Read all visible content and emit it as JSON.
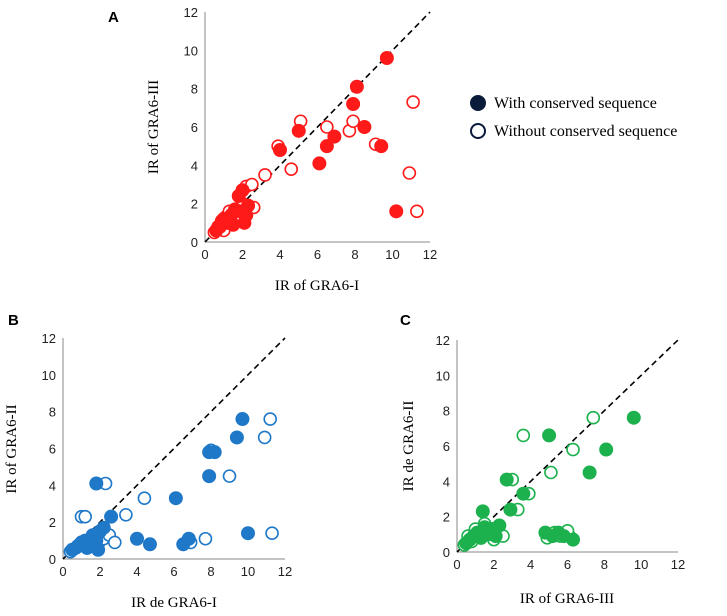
{
  "legend": {
    "filled_label": "With conserved sequence",
    "open_label": "Without conserved sequence",
    "marker_color": "#0a1a3a"
  },
  "chart_data": [
    {
      "type": "scatter",
      "panel": "A",
      "color": "#ff1a1a",
      "xlabel": "IR of GRA6-I",
      "ylabel": "IR of  GRA6-III",
      "xlim": [
        0,
        12
      ],
      "ylim": [
        0,
        12
      ],
      "ticks": [
        "0",
        "2",
        "4",
        "6",
        "8",
        "10",
        "12"
      ],
      "diagonal": true,
      "series": [
        {
          "name": "With conserved sequence",
          "filled": true,
          "points": [
            [
              0.6,
              0.6
            ],
            [
              0.8,
              0.8
            ],
            [
              1.0,
              1.2
            ],
            [
              1.2,
              1.0
            ],
            [
              1.4,
              1.4
            ],
            [
              1.6,
              1.7
            ],
            [
              1.8,
              2.4
            ],
            [
              2.0,
              2.7
            ],
            [
              2.1,
              1.0
            ],
            [
              2.3,
              1.9
            ],
            [
              1.9,
              1.6
            ],
            [
              2.2,
              1.4
            ],
            [
              0.9,
              1.1
            ],
            [
              1.5,
              0.9
            ],
            [
              4.0,
              4.8
            ],
            [
              5.0,
              5.8
            ],
            [
              6.1,
              4.1
            ],
            [
              6.5,
              5.0
            ],
            [
              6.9,
              5.5
            ],
            [
              7.9,
              7.2
            ],
            [
              8.1,
              8.1
            ],
            [
              8.5,
              6.0
            ],
            [
              9.4,
              5.0
            ],
            [
              9.7,
              9.6
            ],
            [
              10.2,
              1.6
            ]
          ]
        },
        {
          "name": "Without conserved sequence",
          "filled": false,
          "points": [
            [
              0.5,
              0.5
            ],
            [
              0.7,
              0.8
            ],
            [
              1.0,
              0.6
            ],
            [
              1.1,
              1.3
            ],
            [
              1.3,
              1.6
            ],
            [
              1.5,
              1.0
            ],
            [
              1.7,
              1.3
            ],
            [
              2.0,
              2.0
            ],
            [
              2.2,
              2.9
            ],
            [
              2.5,
              3.0
            ],
            [
              2.6,
              1.8
            ],
            [
              3.2,
              3.5
            ],
            [
              3.9,
              5.0
            ],
            [
              4.6,
              3.8
            ],
            [
              5.1,
              6.3
            ],
            [
              6.5,
              6.0
            ],
            [
              7.7,
              5.8
            ],
            [
              7.9,
              6.3
            ],
            [
              9.1,
              5.1
            ],
            [
              10.9,
              3.6
            ],
            [
              11.1,
              7.3
            ],
            [
              11.3,
              1.6
            ]
          ]
        }
      ]
    },
    {
      "type": "scatter",
      "panel": "B",
      "color": "#1f78c8",
      "xlabel": "IR de GRA6-I",
      "ylabel": "IR of  GRA6-II",
      "xlim": [
        0,
        12
      ],
      "ylim": [
        0,
        12
      ],
      "ticks": [
        "0",
        "2",
        "4",
        "6",
        "8",
        "10",
        "12"
      ],
      "diagonal": true,
      "series": [
        {
          "name": "With conserved sequence",
          "filled": true,
          "points": [
            [
              0.5,
              0.5
            ],
            [
              0.8,
              0.7
            ],
            [
              1.0,
              0.9
            ],
            [
              1.2,
              1.0
            ],
            [
              1.4,
              0.8
            ],
            [
              1.6,
              1.2
            ],
            [
              1.8,
              1.0
            ],
            [
              2.0,
              1.5
            ],
            [
              2.2,
              1.7
            ],
            [
              1.3,
              0.6
            ],
            [
              1.9,
              0.5
            ],
            [
              1.8,
              4.1
            ],
            [
              2.6,
              2.3
            ],
            [
              4.0,
              1.1
            ],
            [
              4.7,
              0.8
            ],
            [
              6.1,
              3.3
            ],
            [
              6.5,
              0.8
            ],
            [
              6.8,
              1.1
            ],
            [
              7.9,
              4.5
            ],
            [
              7.9,
              5.8
            ],
            [
              8.2,
              5.8
            ],
            [
              9.4,
              6.6
            ],
            [
              9.7,
              7.6
            ],
            [
              10.0,
              1.4
            ]
          ]
        },
        {
          "name": "Without conserved sequence",
          "filled": false,
          "points": [
            [
              0.4,
              0.4
            ],
            [
              0.7,
              0.6
            ],
            [
              0.9,
              0.8
            ],
            [
              1.0,
              2.3
            ],
            [
              1.2,
              2.3
            ],
            [
              1.4,
              0.9
            ],
            [
              1.6,
              1.3
            ],
            [
              1.9,
              0.8
            ],
            [
              2.2,
              1.1
            ],
            [
              2.3,
              4.1
            ],
            [
              2.5,
              1.3
            ],
            [
              2.8,
              0.9
            ],
            [
              3.4,
              2.4
            ],
            [
              4.4,
              3.3
            ],
            [
              6.9,
              0.9
            ],
            [
              7.7,
              1.1
            ],
            [
              8.0,
              5.9
            ],
            [
              9.0,
              4.5
            ],
            [
              10.9,
              6.6
            ],
            [
              11.2,
              7.6
            ],
            [
              11.3,
              1.4
            ]
          ]
        }
      ]
    },
    {
      "type": "scatter",
      "panel": "C",
      "color": "#1db14e",
      "xlabel": "IR of GRA6-III",
      "ylabel": "IR de  GRA6-II",
      "xlim": [
        0,
        12
      ],
      "ylim": [
        0,
        12
      ],
      "ticks": [
        "0",
        "2",
        "4",
        "6",
        "8",
        "10",
        "12"
      ],
      "diagonal": true,
      "series": [
        {
          "name": "With conserved sequence",
          "filled": true,
          "points": [
            [
              0.5,
              0.5
            ],
            [
              0.7,
              0.7
            ],
            [
              0.9,
              0.9
            ],
            [
              1.1,
              1.1
            ],
            [
              1.3,
              0.8
            ],
            [
              1.5,
              1.4
            ],
            [
              1.7,
              1.0
            ],
            [
              1.9,
              1.3
            ],
            [
              2.1,
              0.9
            ],
            [
              2.3,
              1.5
            ],
            [
              1.4,
              2.3
            ],
            [
              2.7,
              4.1
            ],
            [
              2.9,
              2.4
            ],
            [
              3.6,
              3.3
            ],
            [
              4.8,
              1.1
            ],
            [
              5.0,
              6.6
            ],
            [
              5.2,
              0.9
            ],
            [
              5.5,
              1.1
            ],
            [
              5.8,
              0.9
            ],
            [
              6.3,
              0.7
            ],
            [
              7.2,
              4.5
            ],
            [
              8.1,
              5.8
            ],
            [
              9.6,
              7.6
            ]
          ]
        },
        {
          "name": "Without conserved sequence",
          "filled": false,
          "points": [
            [
              0.4,
              0.4
            ],
            [
              0.6,
              0.9
            ],
            [
              0.8,
              0.6
            ],
            [
              1.0,
              1.3
            ],
            [
              1.2,
              0.9
            ],
            [
              1.5,
              1.6
            ],
            [
              1.8,
              1.3
            ],
            [
              2.0,
              0.7
            ],
            [
              2.5,
              0.9
            ],
            [
              3.0,
              4.1
            ],
            [
              3.3,
              2.4
            ],
            [
              3.6,
              6.6
            ],
            [
              3.9,
              3.3
            ],
            [
              5.1,
              4.5
            ],
            [
              5.3,
              1.1
            ],
            [
              5.6,
              0.9
            ],
            [
              6.1,
              0.9
            ],
            [
              6.3,
              5.8
            ],
            [
              7.4,
              7.6
            ],
            [
              6.0,
              1.2
            ],
            [
              4.9,
              0.8
            ]
          ]
        }
      ]
    }
  ]
}
